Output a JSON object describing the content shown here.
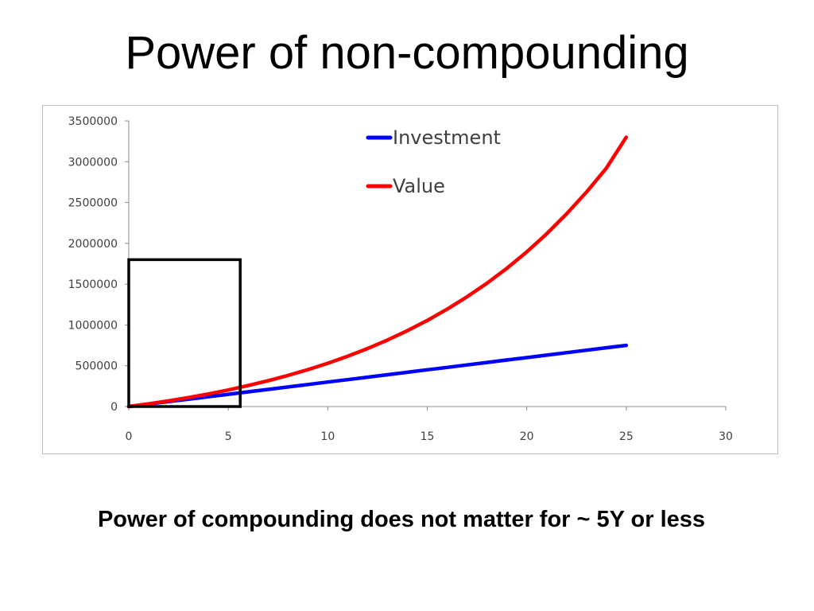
{
  "slide": {
    "title": "Power of non-compounding",
    "caption": "Power of compounding does not matter for ~ 5Y or less"
  },
  "chart_data": {
    "type": "line",
    "title": "",
    "xlabel": "",
    "ylabel": "",
    "xlim": [
      0,
      30
    ],
    "ylim": [
      0,
      3500000
    ],
    "x_ticks": [
      0,
      5,
      10,
      15,
      20,
      25,
      30
    ],
    "y_ticks": [
      0,
      500000,
      1000000,
      1500000,
      2000000,
      2500000,
      3000000,
      3500000
    ],
    "grid": false,
    "legend_position": "top-center",
    "series": [
      {
        "name": "Investment",
        "color": "#0000ff",
        "x": [
          0,
          1,
          2,
          3,
          4,
          5,
          6,
          7,
          8,
          9,
          10,
          11,
          12,
          13,
          14,
          15,
          16,
          17,
          18,
          19,
          20,
          21,
          22,
          23,
          24,
          25
        ],
        "values": [
          0,
          30000,
          60000,
          90000,
          120000,
          150000,
          180000,
          210000,
          240000,
          270000,
          300000,
          330000,
          360000,
          390000,
          420000,
          450000,
          480000,
          510000,
          540000,
          570000,
          600000,
          630000,
          660000,
          690000,
          720000,
          750000
        ]
      },
      {
        "name": "Value",
        "color": "#ff0000",
        "x": [
          0,
          1,
          2,
          3,
          4,
          5,
          6,
          7,
          8,
          9,
          10,
          11,
          12,
          13,
          14,
          15,
          16,
          17,
          18,
          19,
          20,
          21,
          22,
          23,
          24,
          25
        ],
        "values": [
          0,
          33000,
          69000,
          110000,
          154000,
          203000,
          257000,
          316000,
          381000,
          452000,
          530000,
          617000,
          711000,
          815000,
          930000,
          1055000,
          1193000,
          1345000,
          1511000,
          1694000,
          1895000,
          2117000,
          2360000,
          2628000,
          2922000,
          3300000
        ]
      }
    ],
    "annotation": {
      "type": "rectangle",
      "color": "#000000",
      "x_range": [
        0,
        5.6
      ],
      "y_range": [
        0,
        1800000
      ]
    }
  }
}
